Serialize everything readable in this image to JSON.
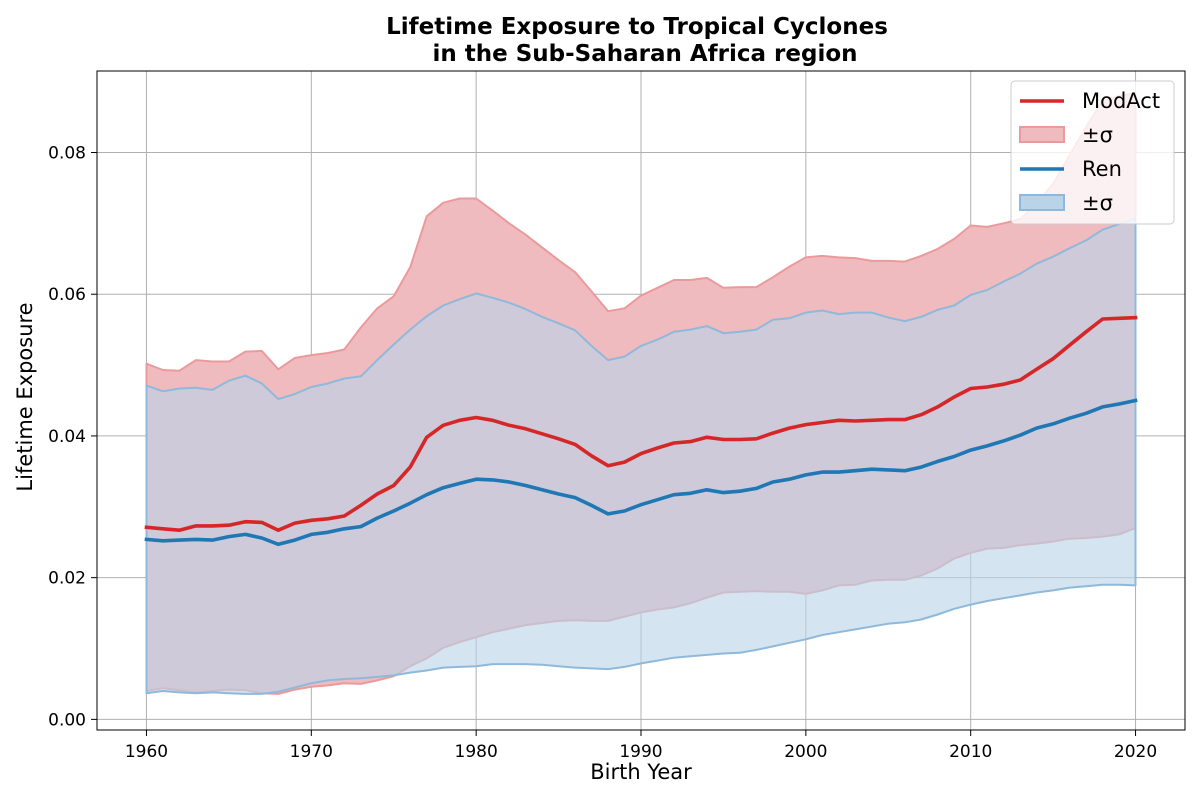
{
  "chart_data": {
    "type": "area",
    "title_line1": "Lifetime Exposure to Tropical Cyclones",
    "title_line2": "in the Sub-Saharan Africa region",
    "xlabel": "Birth Year",
    "ylabel": "Lifetime Exposure",
    "xlim": [
      1957,
      2023
    ],
    "ylim": [
      -0.0015,
      0.0915
    ],
    "xticks": [
      1960,
      1970,
      1980,
      1990,
      2000,
      2010,
      2020
    ],
    "xtick_labels": [
      "1960",
      "1970",
      "1980",
      "1990",
      "2000",
      "2010",
      "2020"
    ],
    "yticks": [
      0,
      0.02,
      0.04,
      0.06,
      0.08
    ],
    "ytick_labels": [
      "0.00",
      "0.02",
      "0.04",
      "0.06",
      "0.08"
    ],
    "grid": true,
    "legend_position": "top-right",
    "legend": [
      {
        "label": "ModAct",
        "kind": "line",
        "series": 0
      },
      {
        "label": "±σ",
        "kind": "band",
        "series": 0
      },
      {
        "label": "Ren",
        "kind": "line",
        "series": 1
      },
      {
        "label": "±σ",
        "kind": "band",
        "series": 1
      }
    ],
    "x": [
      1960,
      1961,
      1962,
      1963,
      1964,
      1965,
      1966,
      1967,
      1968,
      1969,
      1970,
      1971,
      1972,
      1973,
      1974,
      1975,
      1976,
      1977,
      1978,
      1979,
      1980,
      1981,
      1982,
      1983,
      1984,
      1985,
      1986,
      1987,
      1988,
      1989,
      1990,
      1991,
      1992,
      1993,
      1994,
      1995,
      1996,
      1997,
      1998,
      1999,
      2000,
      2001,
      2002,
      2003,
      2004,
      2005,
      2006,
      2007,
      2008,
      2009,
      2010,
      2011,
      2012,
      2013,
      2014,
      2015,
      2016,
      2017,
      2018,
      2019,
      2020
    ],
    "series": [
      {
        "name": "ModAct",
        "color": "#d62728",
        "band_fill": "#f0bbbf",
        "band_edge": "#eb9a9c",
        "mean": [
          0.0271,
          0.0269,
          0.0267,
          0.0273,
          0.0273,
          0.0274,
          0.0279,
          0.0278,
          0.0267,
          0.0277,
          0.0281,
          0.0283,
          0.0287,
          0.0302,
          0.0318,
          0.033,
          0.0356,
          0.0398,
          0.0415,
          0.0422,
          0.0426,
          0.0422,
          0.0415,
          0.041,
          0.0403,
          0.0396,
          0.0388,
          0.0372,
          0.0358,
          0.0363,
          0.0375,
          0.0383,
          0.039,
          0.0392,
          0.0398,
          0.0395,
          0.0395,
          0.0396,
          0.0404,
          0.0411,
          0.0416,
          0.0419,
          0.0422,
          0.0421,
          0.0422,
          0.0423,
          0.0423,
          0.043,
          0.0441,
          0.0455,
          0.0467,
          0.0469,
          0.0473,
          0.0479,
          0.0494,
          0.0509,
          0.0528,
          0.0547,
          0.0565,
          0.0566,
          0.0567
        ],
        "upper": [
          0.0502,
          0.0493,
          0.0492,
          0.0507,
          0.0505,
          0.0505,
          0.0519,
          0.052,
          0.0494,
          0.051,
          0.0514,
          0.0517,
          0.0522,
          0.0553,
          0.058,
          0.0597,
          0.0638,
          0.071,
          0.0729,
          0.0735,
          0.0735,
          0.0718,
          0.07,
          0.0684,
          0.0666,
          0.0648,
          0.0631,
          0.0604,
          0.0576,
          0.058,
          0.0598,
          0.0609,
          0.062,
          0.062,
          0.0623,
          0.0609,
          0.061,
          0.061,
          0.0624,
          0.0639,
          0.0652,
          0.0654,
          0.0652,
          0.0651,
          0.0647,
          0.0647,
          0.0646,
          0.0654,
          0.0664,
          0.0678,
          0.0697,
          0.0695,
          0.07,
          0.0706,
          0.0728,
          0.0756,
          0.0796,
          0.0836,
          0.0873,
          0.088,
          0.0884
        ],
        "lower": [
          0.004,
          0.0044,
          0.0041,
          0.0038,
          0.004,
          0.0042,
          0.0041,
          0.0037,
          0.0036,
          0.0042,
          0.0046,
          0.0048,
          0.0051,
          0.005,
          0.0055,
          0.0061,
          0.0075,
          0.0086,
          0.0101,
          0.0109,
          0.0116,
          0.0123,
          0.0128,
          0.0133,
          0.0136,
          0.0139,
          0.014,
          0.0139,
          0.0139,
          0.0145,
          0.0151,
          0.0155,
          0.0158,
          0.0164,
          0.0172,
          0.0179,
          0.018,
          0.0181,
          0.018,
          0.018,
          0.0177,
          0.0182,
          0.0189,
          0.019,
          0.0196,
          0.0197,
          0.0197,
          0.0203,
          0.0213,
          0.0227,
          0.0235,
          0.0241,
          0.0242,
          0.0246,
          0.0248,
          0.0251,
          0.0255,
          0.0256,
          0.0258,
          0.0261,
          0.027
        ]
      },
      {
        "name": "Ren",
        "color": "#1f77b4",
        "band_fill": "#b9d3e8",
        "band_edge": "#8fb9da",
        "mean": [
          0.0254,
          0.0252,
          0.0253,
          0.0254,
          0.0253,
          0.0258,
          0.0261,
          0.0256,
          0.0247,
          0.0253,
          0.0261,
          0.0264,
          0.0269,
          0.0272,
          0.0284,
          0.0294,
          0.0305,
          0.0317,
          0.0327,
          0.0333,
          0.0339,
          0.0338,
          0.0335,
          0.033,
          0.0324,
          0.0318,
          0.0313,
          0.0302,
          0.029,
          0.0294,
          0.0303,
          0.031,
          0.0317,
          0.0319,
          0.0324,
          0.032,
          0.0322,
          0.0326,
          0.0335,
          0.0339,
          0.0345,
          0.0349,
          0.0349,
          0.0351,
          0.0353,
          0.0352,
          0.0351,
          0.0356,
          0.0364,
          0.0371,
          0.038,
          0.0386,
          0.0393,
          0.0401,
          0.0411,
          0.0417,
          0.0425,
          0.0432,
          0.0441,
          0.0445,
          0.045
        ],
        "upper": [
          0.0471,
          0.0463,
          0.0467,
          0.0468,
          0.0465,
          0.0478,
          0.0485,
          0.0474,
          0.0452,
          0.0459,
          0.0469,
          0.0474,
          0.0481,
          0.0484,
          0.0507,
          0.0529,
          0.055,
          0.0569,
          0.0584,
          0.0593,
          0.0601,
          0.0595,
          0.0588,
          0.0579,
          0.0568,
          0.0559,
          0.0549,
          0.0527,
          0.0507,
          0.0512,
          0.0527,
          0.0536,
          0.0547,
          0.055,
          0.0555,
          0.0545,
          0.0547,
          0.055,
          0.0564,
          0.0566,
          0.0574,
          0.0577,
          0.0572,
          0.0574,
          0.0574,
          0.0567,
          0.0562,
          0.0568,
          0.0578,
          0.0584,
          0.0599,
          0.0606,
          0.0618,
          0.0629,
          0.0643,
          0.0653,
          0.0665,
          0.0676,
          0.0691,
          0.0699,
          0.0707
        ],
        "lower": [
          0.0037,
          0.004,
          0.0038,
          0.0037,
          0.0038,
          0.0037,
          0.0036,
          0.0036,
          0.0039,
          0.0045,
          0.0051,
          0.0055,
          0.0057,
          0.0058,
          0.006,
          0.0062,
          0.0066,
          0.0069,
          0.0073,
          0.0074,
          0.0075,
          0.0078,
          0.0078,
          0.0078,
          0.0077,
          0.0075,
          0.0073,
          0.0072,
          0.0071,
          0.0074,
          0.0079,
          0.0083,
          0.0087,
          0.0089,
          0.0091,
          0.0093,
          0.0094,
          0.0098,
          0.0103,
          0.0108,
          0.0113,
          0.0119,
          0.0123,
          0.0127,
          0.0131,
          0.0135,
          0.0137,
          0.0141,
          0.0148,
          0.0156,
          0.0162,
          0.0167,
          0.0171,
          0.0175,
          0.0179,
          0.0182,
          0.0186,
          0.0188,
          0.019,
          0.019,
          0.0189
        ]
      }
    ]
  }
}
